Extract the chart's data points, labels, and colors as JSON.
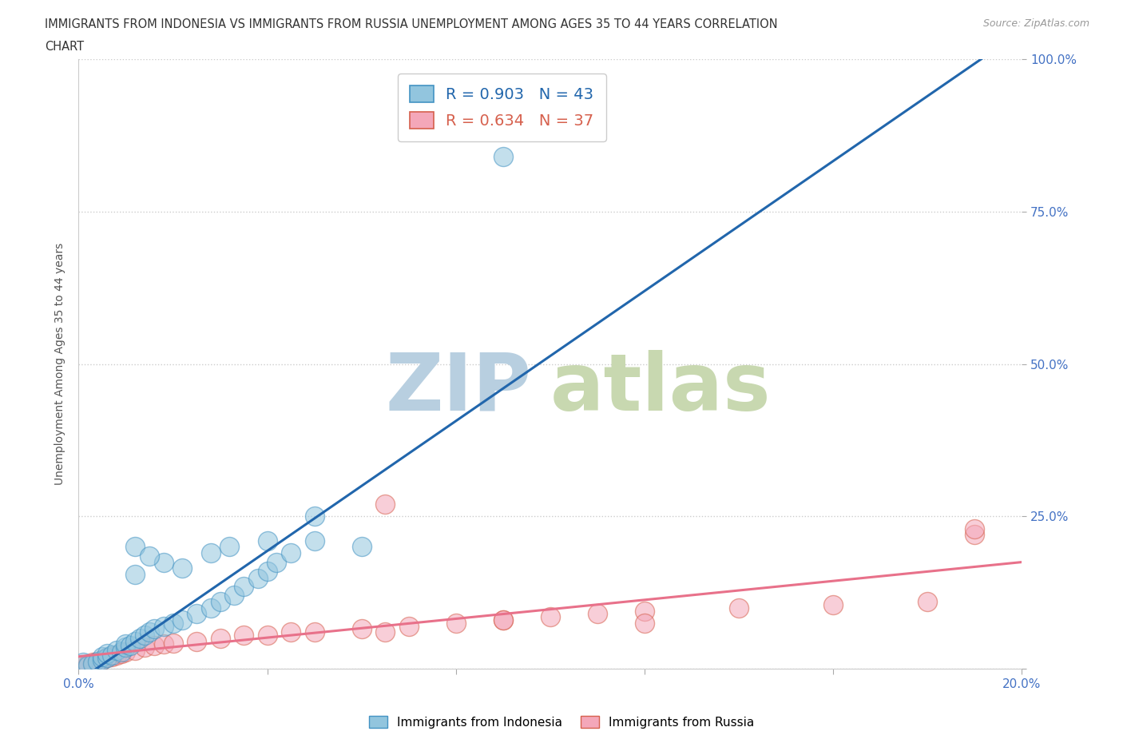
{
  "title_line1": "IMMIGRANTS FROM INDONESIA VS IMMIGRANTS FROM RUSSIA UNEMPLOYMENT AMONG AGES 35 TO 44 YEARS CORRELATION",
  "title_line2": "CHART",
  "source_text": "Source: ZipAtlas.com",
  "ylabel": "Unemployment Among Ages 35 to 44 years",
  "xlim": [
    0.0,
    0.2
  ],
  "ylim": [
    0.0,
    1.0
  ],
  "indonesia_color": "#92c5de",
  "indonesia_edge_color": "#4393c3",
  "russia_color": "#f4a7b9",
  "russia_edge_color": "#d6604d",
  "indonesia_line_color": "#2166ac",
  "russia_line_color": "#e8718a",
  "indonesia_R": 0.903,
  "indonesia_N": 43,
  "russia_R": 0.634,
  "russia_N": 37,
  "watermark": "ZIPatlas",
  "watermark_color_zip": "#b8cfe0",
  "watermark_color_atlas": "#c8d8b0",
  "background_color": "#ffffff",
  "grid_color": "#cccccc",
  "indo_line_x0": 0.0,
  "indo_line_y0": -0.02,
  "indo_line_x1": 0.195,
  "indo_line_y1": 1.02,
  "russia_line_x0": 0.0,
  "russia_line_y0": 0.02,
  "russia_line_x1": 0.2,
  "russia_line_y1": 0.175,
  "indonesia_scatter_x": [
    0.001,
    0.002,
    0.003,
    0.004,
    0.005,
    0.005,
    0.006,
    0.006,
    0.007,
    0.008,
    0.009,
    0.01,
    0.01,
    0.011,
    0.012,
    0.013,
    0.014,
    0.015,
    0.016,
    0.018,
    0.02,
    0.022,
    0.025,
    0.028,
    0.03,
    0.033,
    0.035,
    0.038,
    0.04,
    0.042,
    0.045,
    0.05,
    0.012,
    0.018,
    0.022,
    0.028,
    0.032,
    0.04,
    0.05,
    0.06,
    0.012,
    0.09,
    0.015
  ],
  "indonesia_scatter_y": [
    0.01,
    0.005,
    0.008,
    0.012,
    0.015,
    0.02,
    0.018,
    0.025,
    0.022,
    0.03,
    0.028,
    0.035,
    0.04,
    0.038,
    0.045,
    0.05,
    0.055,
    0.06,
    0.065,
    0.07,
    0.075,
    0.08,
    0.09,
    0.1,
    0.11,
    0.12,
    0.135,
    0.148,
    0.16,
    0.175,
    0.19,
    0.21,
    0.2,
    0.175,
    0.165,
    0.19,
    0.2,
    0.21,
    0.25,
    0.2,
    0.155,
    0.84,
    0.185
  ],
  "russia_scatter_x": [
    0.001,
    0.002,
    0.003,
    0.004,
    0.005,
    0.006,
    0.007,
    0.008,
    0.009,
    0.01,
    0.012,
    0.014,
    0.016,
    0.018,
    0.02,
    0.025,
    0.03,
    0.035,
    0.04,
    0.045,
    0.05,
    0.06,
    0.065,
    0.07,
    0.08,
    0.09,
    0.1,
    0.11,
    0.12,
    0.14,
    0.16,
    0.18,
    0.19,
    0.065,
    0.09,
    0.12,
    0.19
  ],
  "russia_scatter_y": [
    0.005,
    0.008,
    0.01,
    0.012,
    0.015,
    0.018,
    0.02,
    0.022,
    0.025,
    0.028,
    0.03,
    0.035,
    0.038,
    0.04,
    0.042,
    0.045,
    0.05,
    0.055,
    0.055,
    0.06,
    0.06,
    0.065,
    0.27,
    0.07,
    0.075,
    0.08,
    0.085,
    0.09,
    0.095,
    0.1,
    0.105,
    0.11,
    0.22,
    0.06,
    0.08,
    0.075,
    0.23
  ]
}
